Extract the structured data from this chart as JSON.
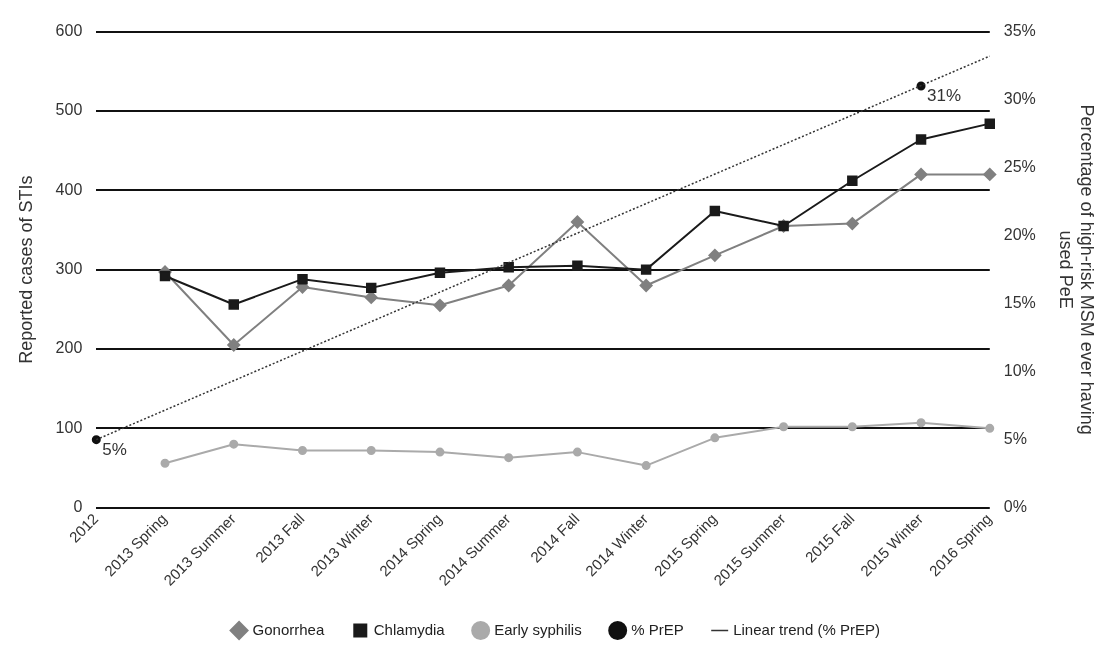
{
  "chart_data": {
    "type": "line",
    "ylabel": "Reported cases of STIs",
    "y2label": "Percentage of high-risk MSM ever having used PeE",
    "categories": [
      "2012",
      "2013 Spring",
      "2013 Summer",
      "2013 Fall",
      "2013 Winter",
      "2014 Spring",
      "2014 Summer",
      "2014 Fall",
      "2014 Winter",
      "2015 Spring",
      "2015 Summer",
      "2015 Fall",
      "2015 Winter",
      "2016 Spring"
    ],
    "series": [
      {
        "name": "Gonorrhea",
        "color": "#808080",
        "marker": "diamond",
        "values": [
          null,
          297,
          205,
          278,
          265,
          255,
          280,
          360,
          280,
          318,
          355,
          358,
          420,
          420
        ]
      },
      {
        "name": "Chlamydia",
        "color": "#1a1a1a",
        "marker": "square",
        "values": [
          null,
          292,
          256,
          288,
          277,
          296,
          303,
          305,
          300,
          374,
          355,
          412,
          464,
          484
        ]
      },
      {
        "name": "Early syphilis",
        "color": "#aaaaaa",
        "marker": "circle",
        "values": [
          null,
          56,
          80,
          72,
          72,
          70,
          63,
          70,
          53,
          88,
          102,
          102,
          107,
          100
        ]
      },
      {
        "name": "% PrEP",
        "type": "scatter",
        "axis": "y2",
        "color": "#111111",
        "marker": "circle",
        "values": [
          5,
          null,
          null,
          null,
          null,
          null,
          null,
          null,
          null,
          null,
          null,
          null,
          31,
          null
        ],
        "value_labels": [
          "5%",
          null,
          null,
          null,
          null,
          null,
          null,
          null,
          null,
          null,
          null,
          null,
          "31%",
          null
        ]
      },
      {
        "name": "Linear trend (% PrEP)",
        "type": "line",
        "axis": "y2",
        "color": "#333333",
        "marker": "none",
        "line_style": "dotted",
        "values": [
          5,
          null,
          null,
          null,
          null,
          null,
          null,
          null,
          null,
          null,
          null,
          null,
          null,
          33.2
        ]
      }
    ],
    "ylim": [
      0,
      600
    ],
    "yticks": [
      0,
      100,
      200,
      300,
      400,
      500,
      600
    ],
    "y2lim": [
      0,
      35
    ],
    "y2ticks": [
      {
        "value": 0,
        "label": "0%"
      },
      {
        "value": 5,
        "label": "5%"
      },
      {
        "value": 10,
        "label": "10%"
      },
      {
        "value": 15,
        "label": "15%"
      },
      {
        "value": 20,
        "label": "20%"
      },
      {
        "value": 25,
        "label": "25%"
      },
      {
        "value": 30,
        "label": "30%"
      },
      {
        "value": 35,
        "label": "35%"
      }
    ],
    "grid": "y",
    "legend": "bottom"
  }
}
